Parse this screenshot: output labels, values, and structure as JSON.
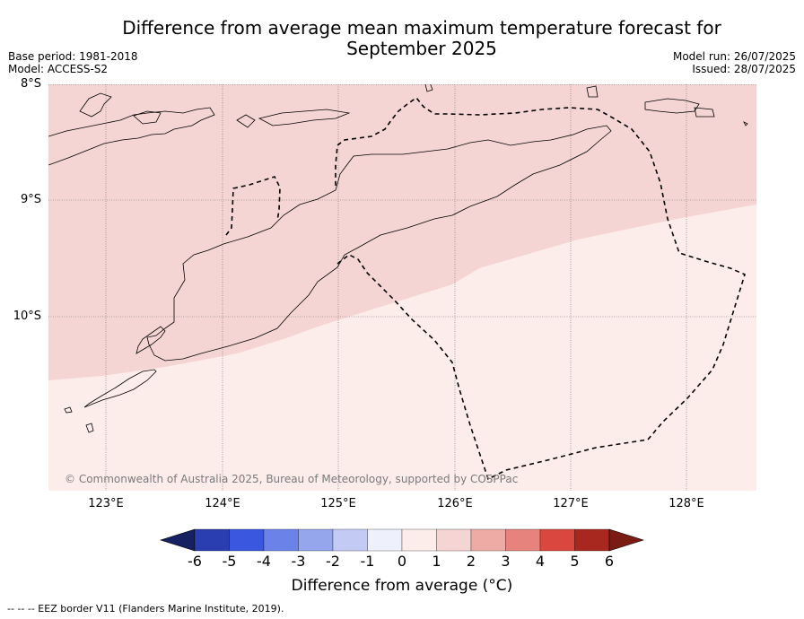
{
  "title": "Difference from average mean maximum temperature forecast for September 2025",
  "meta_left": {
    "base_period": "Base period: 1981-2018",
    "model": "Model: ACCESS-S2"
  },
  "meta_right": {
    "model_run": "Model run: 26/07/2025",
    "issued": "Issued: 28/07/2025"
  },
  "latitude_labels": [
    "8°S",
    "9°S",
    "10°S"
  ],
  "longitude_labels": [
    "123°E",
    "124°E",
    "125°E",
    "126°E",
    "127°E",
    "128°E"
  ],
  "copyright": "© Commonwealth of Australia 2025, Bureau of Meteorology, supported by COSPPac",
  "colorbar": {
    "ticks": [
      "-6",
      "-5",
      "-4",
      "-3",
      "-2",
      "-1",
      "0",
      "1",
      "2",
      "3",
      "4",
      "5",
      "6"
    ],
    "colors": [
      "#162063",
      "#2a3eb1",
      "#3a57e0",
      "#6b83e8",
      "#95a6ec",
      "#c3cbf5",
      "#eef0fb",
      "#fcecea",
      "#f5d5d3",
      "#eeaba6",
      "#e5837c",
      "#d9473f",
      "#a8281f",
      "#7a1c14"
    ],
    "label": "Difference from average (°C)"
  },
  "map_fill": {
    "band_1_2": "#f5d5d3",
    "band_0_1": "#fcecea"
  },
  "footnote": "--  --  -- EEZ border V11 (Flanders Marine Institute, 2019)."
}
